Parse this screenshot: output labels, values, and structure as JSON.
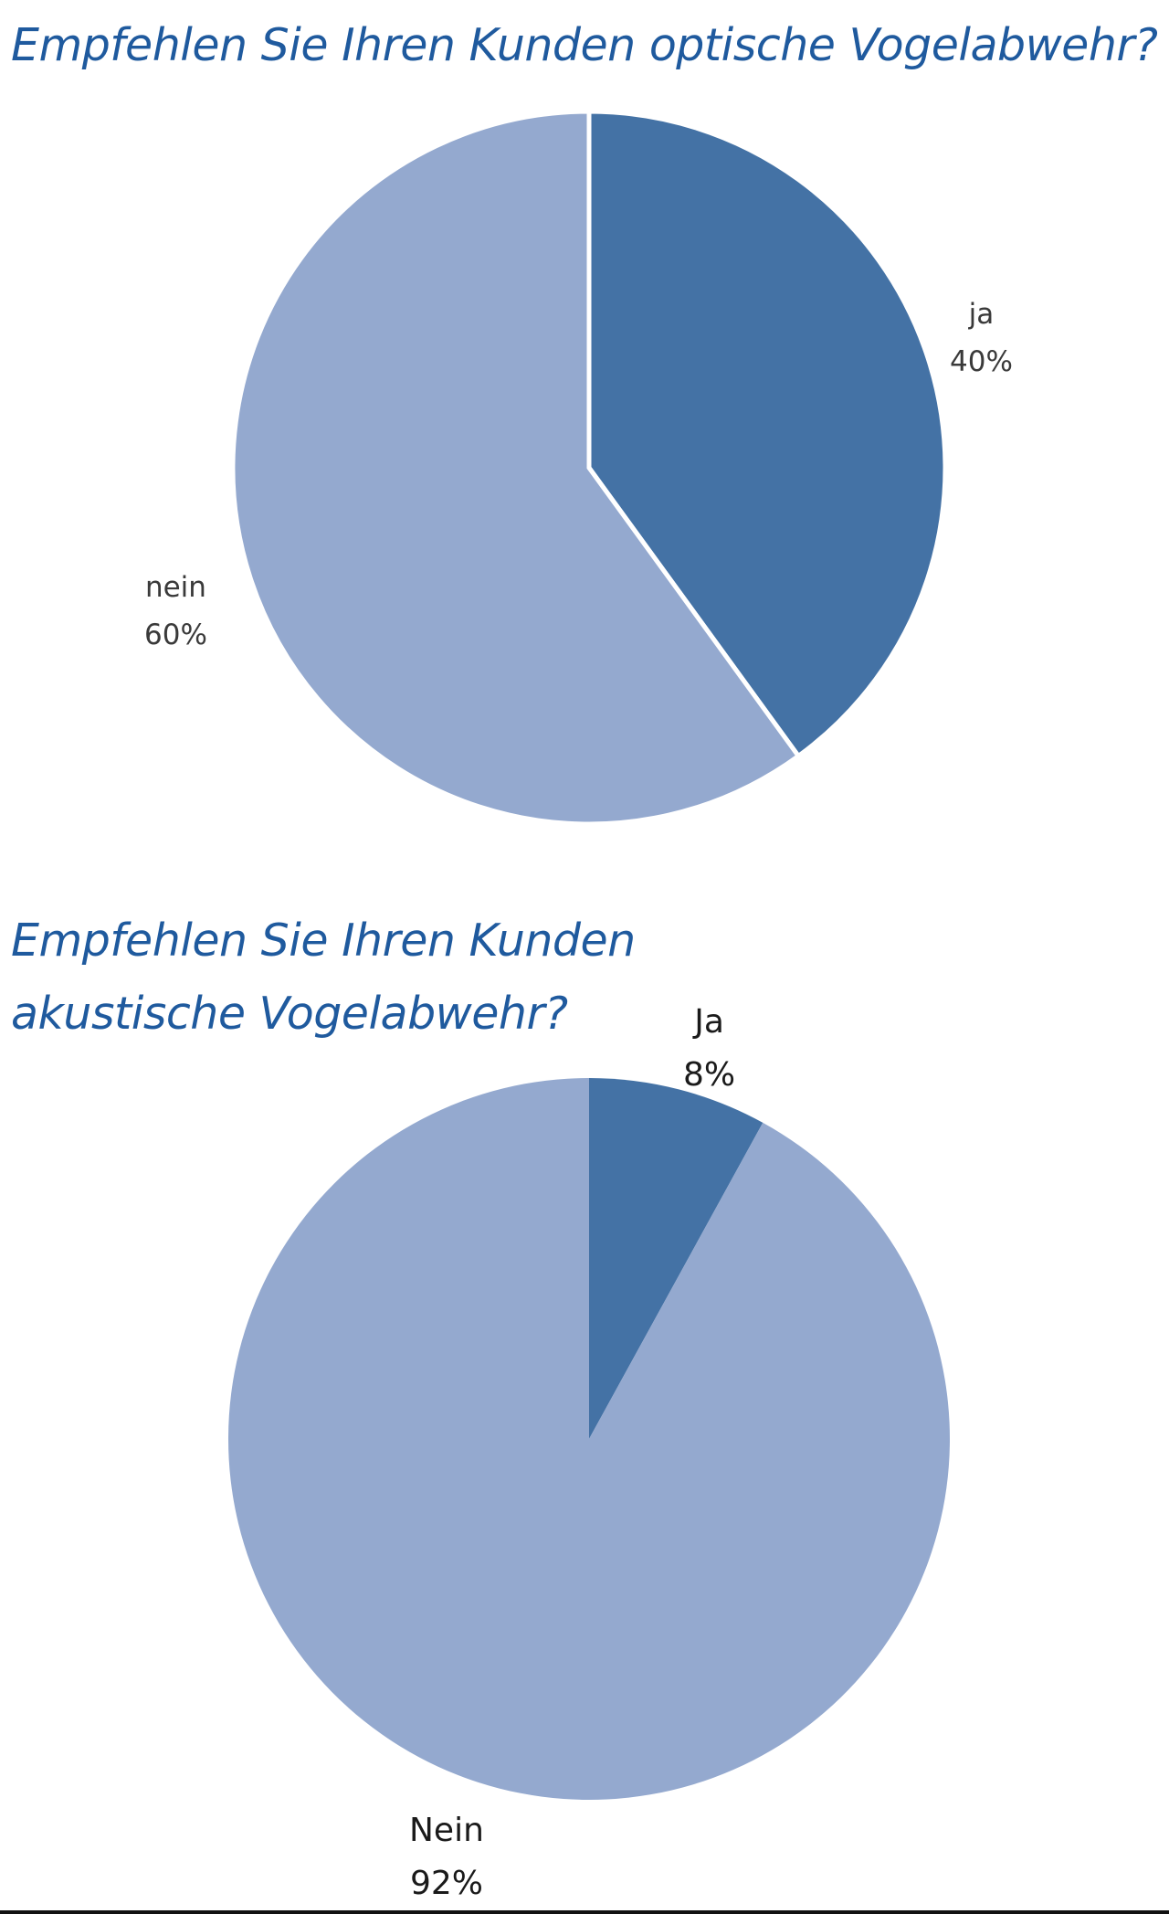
{
  "colors": {
    "title": "#1f5a9e",
    "slice_dark": "#4472a5",
    "slice_light": "#94a9cf",
    "separator": "#ffffff"
  },
  "chart_data": [
    {
      "type": "pie",
      "title": "Empfehlen Sie Ihren Kunden optische Vogelabwehr?",
      "slices": [
        {
          "label": "ja",
          "value": 40,
          "display": "40%",
          "color": "#4472a5"
        },
        {
          "label": "nein",
          "value": 60,
          "display": "60%",
          "color": "#94a9cf"
        }
      ]
    },
    {
      "type": "pie",
      "title": "Empfehlen Sie Ihren Kunden akustische Vogelabwehr?",
      "slices": [
        {
          "label": "Ja",
          "value": 8,
          "display": "8%",
          "color": "#4472a5"
        },
        {
          "label": "Nein",
          "value": 92,
          "display": "92%",
          "color": "#94a9cf"
        }
      ]
    }
  ]
}
